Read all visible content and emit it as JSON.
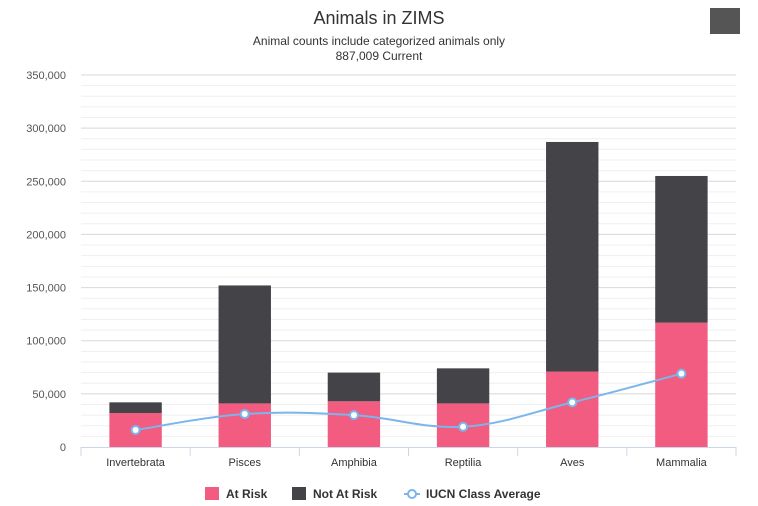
{
  "chart_data": {
    "type": "bar",
    "title": "Animals in ZIMS",
    "subtitle_lines": [
      "Animal counts include categorized animals only",
      "887,009 Current"
    ],
    "categories": [
      "Invertebrata",
      "Pisces",
      "Amphibia",
      "Reptilia",
      "Aves",
      "Mammalia"
    ],
    "stacked": true,
    "ylim": [
      0,
      350000
    ],
    "yticks": [
      0,
      50000,
      100000,
      150000,
      200000,
      250000,
      300000,
      350000
    ],
    "ytick_labels": [
      "0",
      "50,000",
      "100,000",
      "150,000",
      "200,000",
      "250,000",
      "300,000",
      "350,000"
    ],
    "grid": true,
    "legend_position": "bottom-center",
    "series": [
      {
        "name": "At Risk",
        "kind": "bar",
        "color": "#f15c80",
        "values": [
          32000,
          41000,
          43000,
          41000,
          71000,
          117000
        ]
      },
      {
        "name": "Not At Risk",
        "kind": "bar",
        "color": "#434348",
        "values": [
          10000,
          111000,
          27000,
          33000,
          216000,
          138000
        ]
      },
      {
        "name": "IUCN Class Average",
        "kind": "line",
        "color": "#7cb5ec",
        "values": [
          16000,
          31000,
          30000,
          19000,
          42000,
          69000
        ]
      }
    ]
  },
  "menu": {
    "icon": "hamburger-menu-icon"
  }
}
